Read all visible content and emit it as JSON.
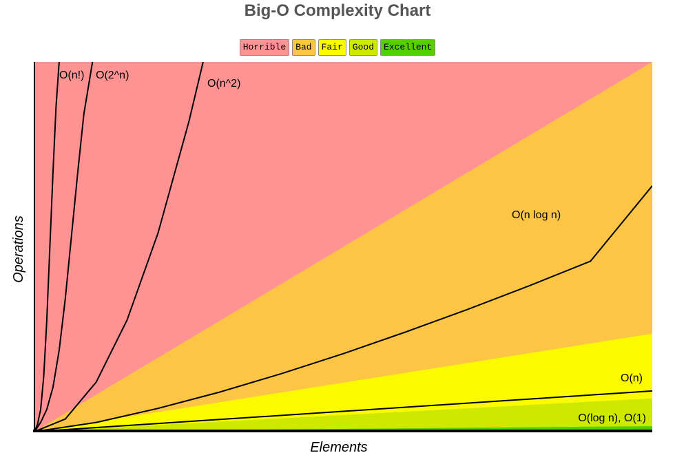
{
  "chart_data": {
    "type": "area",
    "title": "Big-O Complexity Chart",
    "xlabel": "Elements",
    "ylabel": "Operations",
    "xlim": [
      0,
      100
    ],
    "ylim": [
      0,
      1000
    ],
    "ticks": "none",
    "grid": false,
    "legend_position": "top-center",
    "legend": [
      {
        "label": "Horrible",
        "color": "#ff9393"
      },
      {
        "label": "Bad",
        "color": "#fcc546"
      },
      {
        "label": "Fair",
        "color": "#fbfa00"
      },
      {
        "label": "Good",
        "color": "#cde900"
      },
      {
        "label": "Excellent",
        "color": "#53d000"
      }
    ],
    "regions": [
      {
        "name": "Horrible",
        "color": "#ff9393",
        "upper_at_x_max": 1000
      },
      {
        "name": "Bad",
        "color": "#fcc546",
        "upper_at_x_max": 1000
      },
      {
        "name": "Fair",
        "color": "#fbfa00",
        "upper_at_x_max": 265
      },
      {
        "name": "Good",
        "color": "#cde900",
        "upper_at_x_max": 90
      },
      {
        "name": "Excellent",
        "color": "#53d000",
        "upper_at_x_max": 15
      }
    ],
    "curves": [
      {
        "label": "O(n!)",
        "x": [
          0,
          0.5,
          1,
          1.5,
          2,
          2.5,
          3,
          3.5,
          4
        ],
        "y": [
          0,
          20,
          60,
          150,
          300,
          500,
          700,
          880,
          1000
        ]
      },
      {
        "label": "O(2^n)",
        "x": [
          0,
          1,
          2,
          3,
          4,
          5,
          6,
          7,
          8,
          9.4
        ],
        "y": [
          0,
          25,
          60,
          120,
          220,
          360,
          530,
          700,
          860,
          1000
        ]
      },
      {
        "label": "O(n^2)",
        "x": [
          0,
          5,
          10,
          15,
          20,
          25,
          27.3
        ],
        "y": [
          0,
          34,
          134,
          302,
          537,
          839,
          1000
        ]
      },
      {
        "label": "O(n log n)",
        "x": [
          0,
          10,
          20,
          30,
          40,
          50,
          60,
          70,
          80,
          90,
          100
        ],
        "y": [
          0,
          25,
          63,
          107,
          157,
          211,
          269,
          330,
          394,
          461,
          665
        ]
      },
      {
        "label": "O(n)",
        "x": [
          0,
          100
        ],
        "y": [
          0,
          110
        ]
      },
      {
        "label": "O(log n), O(1)",
        "x": [
          0,
          100
        ],
        "y": [
          0,
          3
        ]
      }
    ]
  }
}
